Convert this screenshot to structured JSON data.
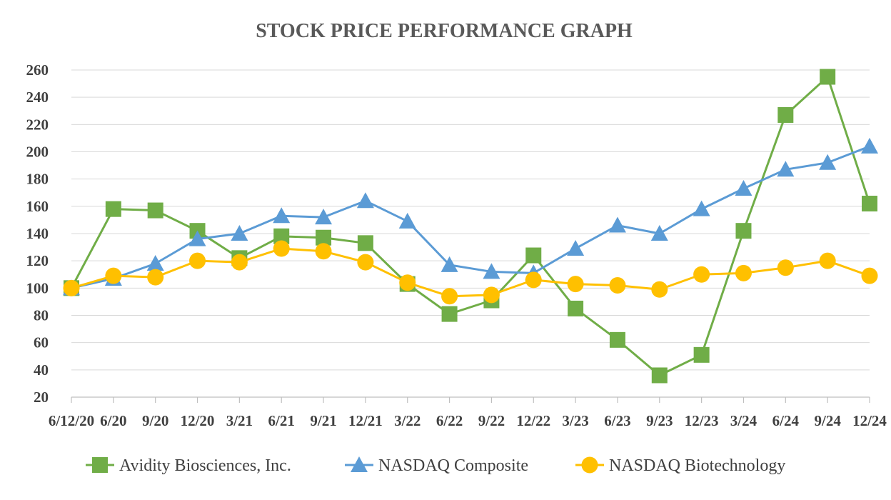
{
  "chart_data": {
    "type": "line",
    "title": "STOCK PRICE PERFORMANCE GRAPH",
    "xlabel": "",
    "ylabel": "",
    "ylim": [
      20,
      260
    ],
    "yticks": [
      20,
      40,
      60,
      80,
      100,
      120,
      140,
      160,
      180,
      200,
      220,
      240,
      260
    ],
    "grid": true,
    "legend_position": "bottom",
    "categories": [
      "6/12/20",
      "6/20",
      "9/20",
      "12/20",
      "3/21",
      "6/21",
      "9/21",
      "12/21",
      "3/22",
      "6/22",
      "9/22",
      "12/22",
      "3/23",
      "6/23",
      "9/23",
      "12/23",
      "3/24",
      "6/24",
      "9/24",
      "12/24"
    ],
    "series": [
      {
        "name": "Avidity Biosciences, Inc.",
        "color": "#70ad47",
        "marker": "square",
        "values": [
          100,
          158,
          157,
          142,
          122,
          138,
          137,
          133,
          103,
          81,
          91,
          124,
          85,
          62,
          36,
          51,
          142,
          227,
          255,
          162
        ]
      },
      {
        "name": "NASDAQ Composite",
        "color": "#5b9bd5",
        "marker": "triangle",
        "values": [
          100,
          107,
          118,
          136,
          140,
          153,
          152,
          164,
          149,
          117,
          112,
          111,
          129,
          146,
          140,
          158,
          173,
          187,
          192,
          204
        ]
      },
      {
        "name": "NASDAQ Biotechnology",
        "color": "#ffc000",
        "marker": "circle",
        "values": [
          100,
          109,
          108,
          120,
          119,
          129,
          127,
          119,
          104,
          94,
          95,
          106,
          103,
          102,
          99,
          110,
          111,
          115,
          120,
          109
        ]
      }
    ]
  }
}
